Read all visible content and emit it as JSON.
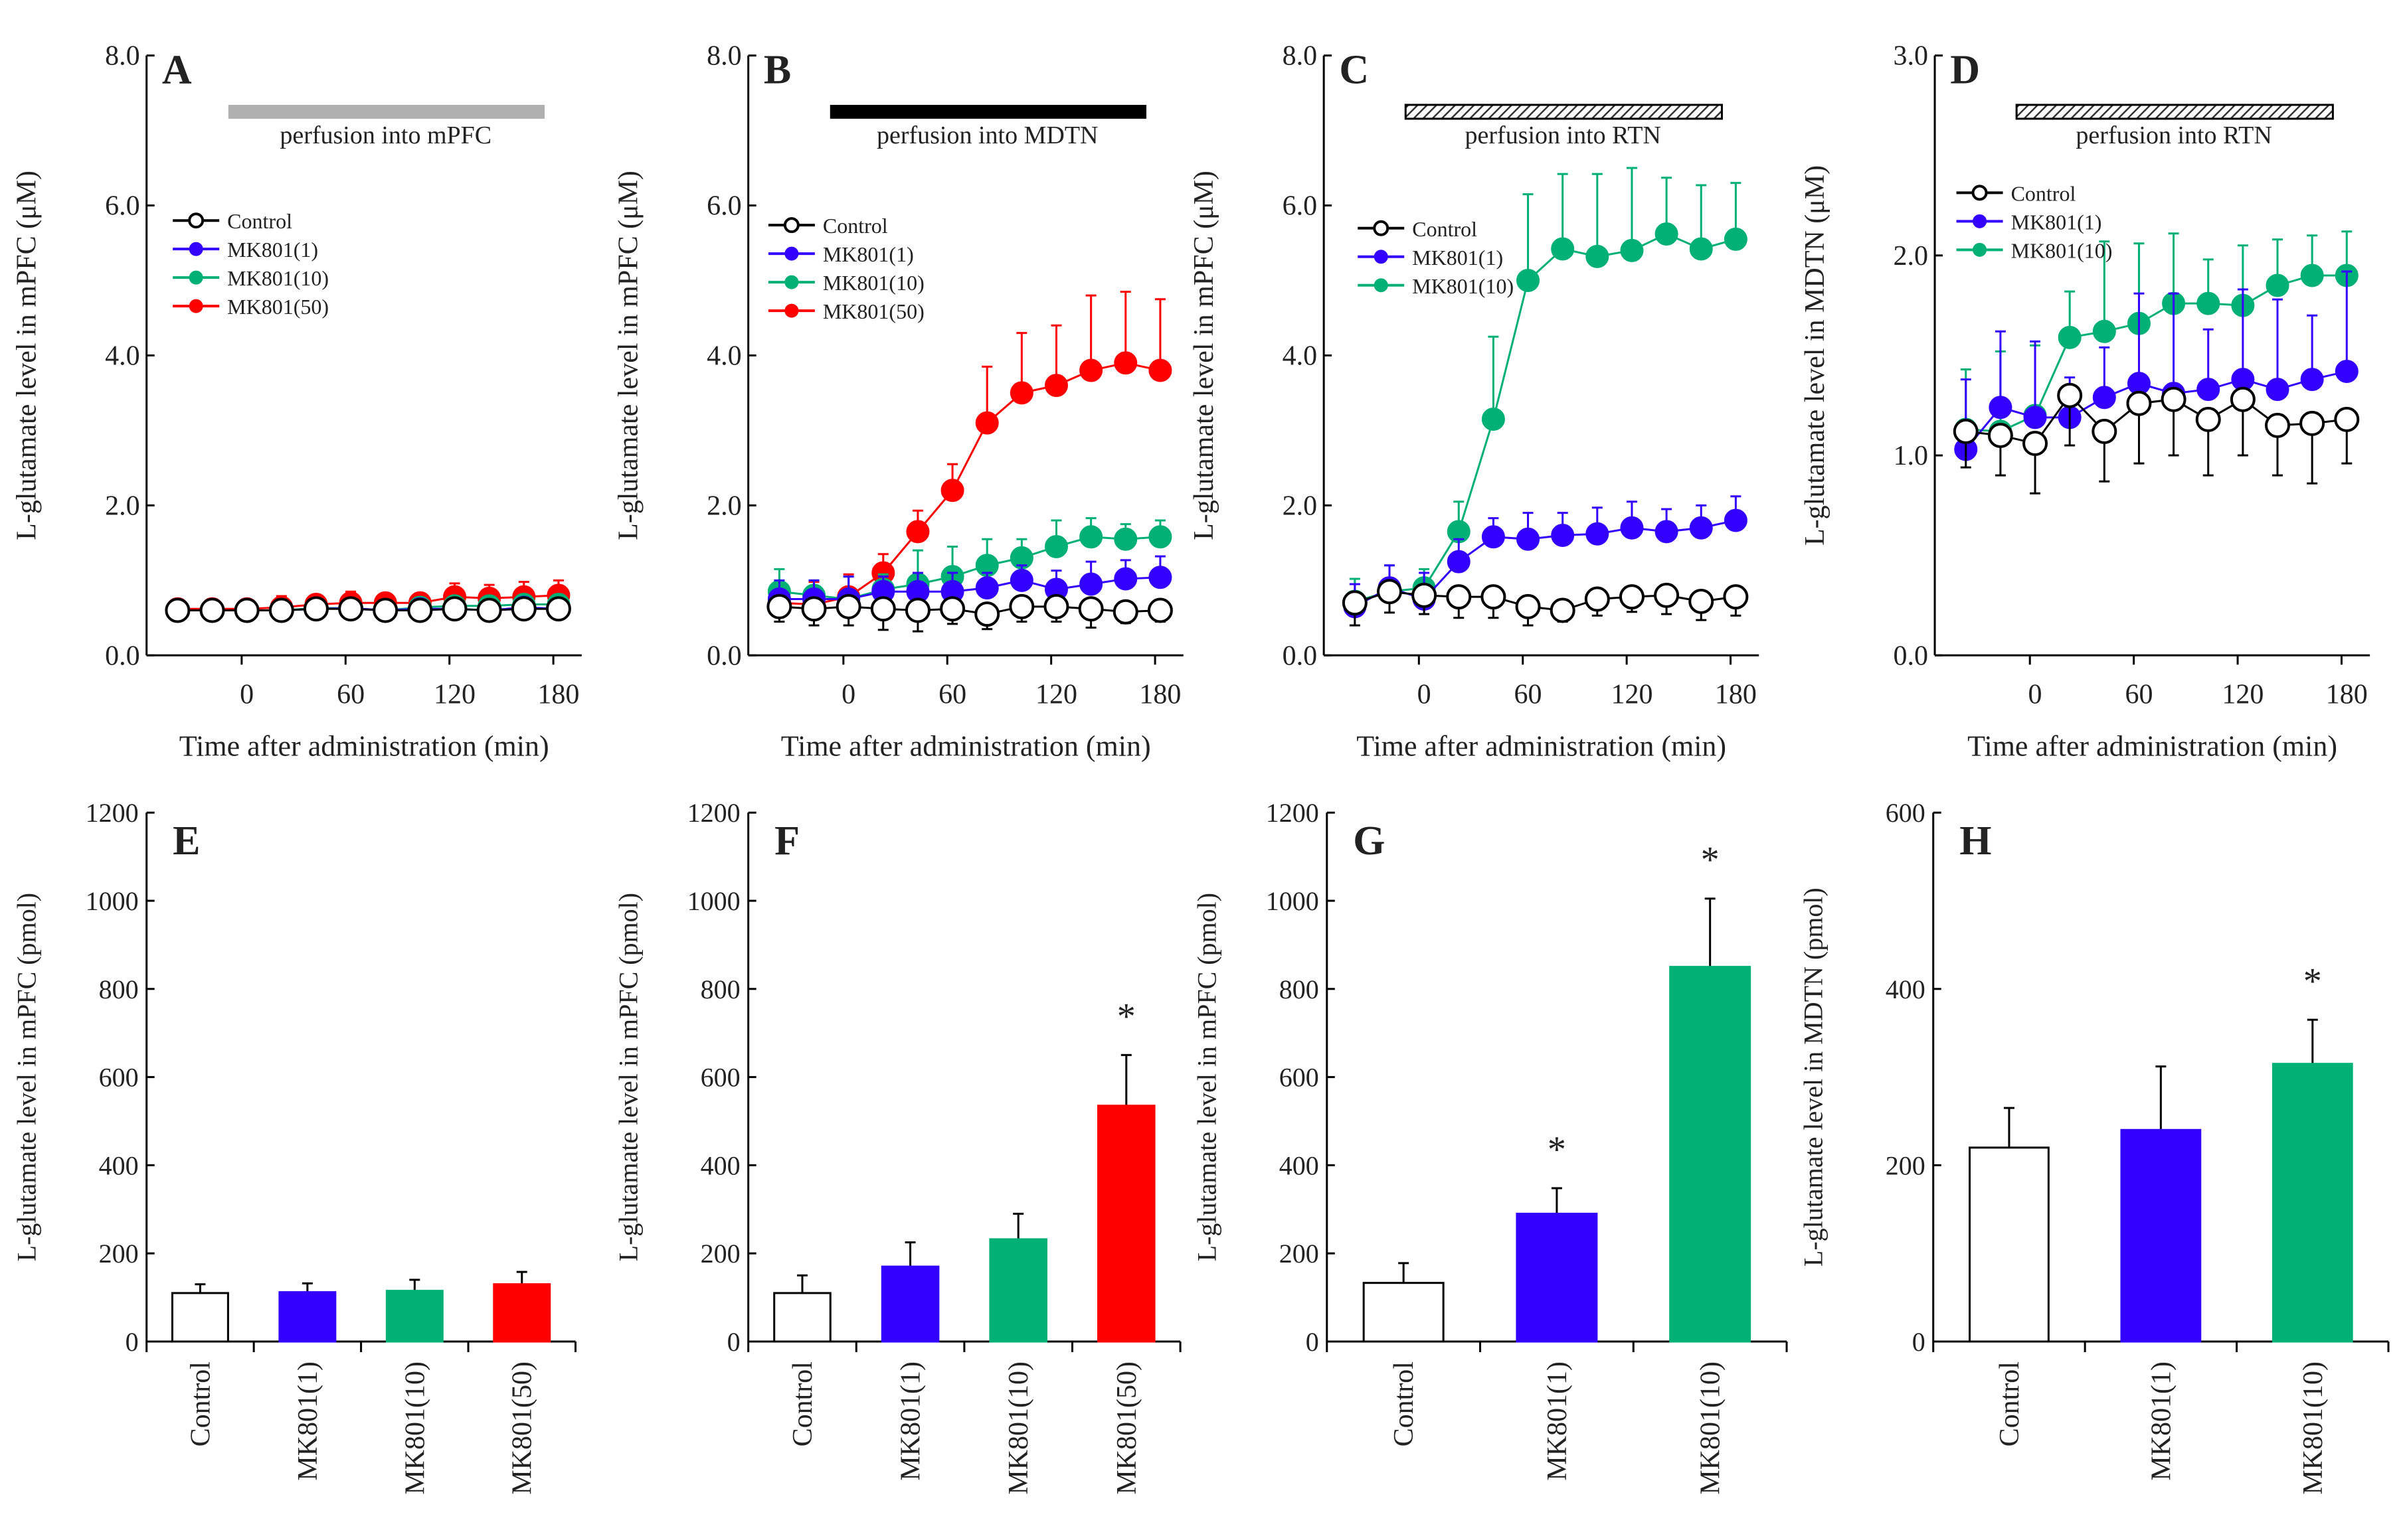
{
  "colors": {
    "control": "#ffffff",
    "mk1": "#3300ff",
    "mk10": "#00b074",
    "mk50": "#ff0000",
    "bar_mpfc": "#b0b0b0",
    "bar_mdtn": "#000000"
  },
  "chart_data": [
    {
      "panel": "A",
      "type": "line",
      "ylabel": "L-glutamate level in mPFC (μM)",
      "xlabel": "Time after administration (min)",
      "ylim": [
        0,
        8
      ],
      "yticks": [
        "0.0",
        "2.0",
        "4.0",
        "6.0",
        "8.0"
      ],
      "xticks": [
        "0",
        "60",
        "120",
        "180"
      ],
      "perfusion": {
        "label": "perfusion into mPFC",
        "style": "gray"
      },
      "x": [
        -40,
        -20,
        0,
        20,
        40,
        60,
        80,
        100,
        120,
        140,
        160,
        180
      ],
      "series": [
        {
          "name": "Control",
          "color": "#000000",
          "filled": false,
          "error_direction": "down",
          "values": [
            0.6,
            0.6,
            0.6,
            0.6,
            0.62,
            0.62,
            0.6,
            0.6,
            0.62,
            0.6,
            0.62,
            0.62
          ],
          "err": [
            0.08,
            0.08,
            0.08,
            0.08,
            0.08,
            0.08,
            0.08,
            0.08,
            0.08,
            0.08,
            0.08,
            0.08
          ]
        },
        {
          "name": "MK801(1)",
          "color": "#3300ff",
          "filled": true,
          "error_direction": "up",
          "values": [
            0.6,
            0.6,
            0.6,
            0.6,
            0.62,
            0.63,
            0.6,
            0.62,
            0.62,
            0.6,
            0.64,
            0.62
          ],
          "err": [
            0.08,
            0.08,
            0.08,
            0.08,
            0.08,
            0.08,
            0.08,
            0.08,
            0.1,
            0.1,
            0.1,
            0.1
          ]
        },
        {
          "name": "MK801(10)",
          "color": "#00b074",
          "filled": true,
          "error_direction": "up",
          "values": [
            0.6,
            0.6,
            0.6,
            0.6,
            0.63,
            0.63,
            0.6,
            0.64,
            0.66,
            0.66,
            0.68,
            0.68
          ],
          "err": [
            0.08,
            0.08,
            0.08,
            0.1,
            0.1,
            0.1,
            0.1,
            0.1,
            0.12,
            0.12,
            0.12,
            0.12
          ]
        },
        {
          "name": "MK801(50)",
          "color": "#ff0000",
          "filled": true,
          "error_direction": "up",
          "values": [
            0.62,
            0.62,
            0.62,
            0.64,
            0.68,
            0.7,
            0.7,
            0.7,
            0.78,
            0.76,
            0.78,
            0.8
          ],
          "err": [
            0.1,
            0.1,
            0.1,
            0.15,
            0.12,
            0.15,
            0.12,
            0.12,
            0.18,
            0.18,
            0.2,
            0.2
          ]
        }
      ]
    },
    {
      "panel": "B",
      "type": "line",
      "ylabel": "L-glutamate level in mPFC (μM)",
      "xlabel": "Time after administration (min)",
      "ylim": [
        0,
        8
      ],
      "yticks": [
        "0.0",
        "2.0",
        "4.0",
        "6.0",
        "8.0"
      ],
      "xticks": [
        "0",
        "60",
        "120",
        "180"
      ],
      "perfusion": {
        "label": "perfusion into MDTN",
        "style": "black"
      },
      "x": [
        -40,
        -20,
        0,
        20,
        40,
        60,
        80,
        100,
        120,
        140,
        160,
        180
      ],
      "series": [
        {
          "name": "Control",
          "color": "#000000",
          "filled": false,
          "error_direction": "down",
          "values": [
            0.65,
            0.62,
            0.65,
            0.62,
            0.6,
            0.62,
            0.55,
            0.65,
            0.65,
            0.62,
            0.58,
            0.6
          ],
          "err": [
            0.2,
            0.22,
            0.25,
            0.28,
            0.28,
            0.2,
            0.2,
            0.2,
            0.2,
            0.25,
            0.15,
            0.15
          ]
        },
        {
          "name": "MK801(1)",
          "color": "#3300ff",
          "filled": true,
          "error_direction": "up",
          "values": [
            0.75,
            0.75,
            0.75,
            0.85,
            0.85,
            0.85,
            0.9,
            1.0,
            0.88,
            0.95,
            1.02,
            1.04
          ],
          "err": [
            0.25,
            0.25,
            0.3,
            0.2,
            0.25,
            0.25,
            0.2,
            0.2,
            0.25,
            0.3,
            0.25,
            0.28
          ]
        },
        {
          "name": "MK801(10)",
          "color": "#00b074",
          "filled": true,
          "error_direction": "up",
          "values": [
            0.85,
            0.8,
            0.75,
            0.88,
            0.95,
            1.05,
            1.2,
            1.3,
            1.45,
            1.58,
            1.55,
            1.58
          ],
          "err": [
            0.3,
            0.2,
            0.3,
            0.2,
            0.45,
            0.4,
            0.35,
            0.25,
            0.35,
            0.25,
            0.2,
            0.22
          ]
        },
        {
          "name": "MK801(50)",
          "color": "#ff0000",
          "filled": true,
          "error_direction": "up",
          "values": [
            0.7,
            0.68,
            0.78,
            1.1,
            1.65,
            2.2,
            3.1,
            3.5,
            3.6,
            3.8,
            3.9,
            3.8
          ],
          "err": [
            0.25,
            0.3,
            0.3,
            0.25,
            0.28,
            0.35,
            0.75,
            0.8,
            0.8,
            1.0,
            0.95,
            0.95
          ]
        }
      ]
    },
    {
      "panel": "C",
      "type": "line",
      "ylabel": "L-glutamate level in mPFC (μM)",
      "xlabel": "Time after administration (min)",
      "ylim": [
        0,
        8
      ],
      "yticks": [
        "0.0",
        "2.0",
        "4.0",
        "6.0",
        "8.0"
      ],
      "xticks": [
        "0",
        "60",
        "120",
        "180"
      ],
      "perfusion": {
        "label": "perfusion into RTN",
        "style": "hatched"
      },
      "x": [
        -40,
        -20,
        0,
        20,
        40,
        60,
        80,
        100,
        120,
        140,
        160,
        180
      ],
      "series": [
        {
          "name": "Control",
          "color": "#000000",
          "filled": false,
          "error_direction": "down",
          "values": [
            0.7,
            0.85,
            0.8,
            0.78,
            0.78,
            0.65,
            0.6,
            0.75,
            0.78,
            0.8,
            0.72,
            0.78
          ],
          "err": [
            0.3,
            0.28,
            0.25,
            0.28,
            0.28,
            0.25,
            0.15,
            0.22,
            0.2,
            0.25,
            0.25,
            0.25
          ]
        },
        {
          "name": "MK801(1)",
          "color": "#3300ff",
          "filled": true,
          "error_direction": "up",
          "values": [
            0.65,
            0.9,
            0.75,
            1.25,
            1.58,
            1.55,
            1.6,
            1.62,
            1.7,
            1.65,
            1.7,
            1.8
          ],
          "err": [
            0.3,
            0.3,
            0.35,
            0.3,
            0.25,
            0.35,
            0.3,
            0.35,
            0.35,
            0.3,
            0.3,
            0.32
          ]
        },
        {
          "name": "MK801(10)",
          "color": "#00b074",
          "filled": true,
          "error_direction": "up",
          "values": [
            0.72,
            0.85,
            0.9,
            1.65,
            3.15,
            5.0,
            5.42,
            5.32,
            5.4,
            5.62,
            5.42,
            5.55
          ],
          "err": [
            0.3,
            0.35,
            0.25,
            0.4,
            1.1,
            1.15,
            1.0,
            1.1,
            1.1,
            0.75,
            0.85,
            0.75
          ]
        }
      ]
    },
    {
      "panel": "D",
      "type": "line",
      "ylabel": "L-glutamate level in MDTN (μM)",
      "xlabel": "Time after administration (min)",
      "ylim": [
        0,
        3
      ],
      "yticks": [
        "0.0",
        "1.0",
        "2.0",
        "3.0"
      ],
      "xticks": [
        "0",
        "60",
        "120",
        "180"
      ],
      "perfusion": {
        "label": "perfusion into RTN",
        "style": "hatched"
      },
      "x": [
        -40,
        -20,
        0,
        20,
        40,
        60,
        80,
        100,
        120,
        140,
        160,
        180
      ],
      "series": [
        {
          "name": "Control",
          "color": "#000000",
          "filled": false,
          "error_direction": "down",
          "values": [
            1.12,
            1.1,
            1.06,
            1.3,
            1.12,
            1.26,
            1.28,
            1.18,
            1.28,
            1.15,
            1.16,
            1.18
          ],
          "err": [
            0.18,
            0.2,
            0.25,
            0.25,
            0.25,
            0.3,
            0.28,
            0.28,
            0.28,
            0.25,
            0.3,
            0.22
          ]
        },
        {
          "name": "MK801(1)",
          "color": "#3300ff",
          "filled": true,
          "error_direction": "up",
          "values": [
            1.03,
            1.24,
            1.19,
            1.19,
            1.29,
            1.36,
            1.31,
            1.33,
            1.38,
            1.33,
            1.38,
            1.42
          ],
          "err": [
            0.35,
            0.38,
            0.38,
            0.2,
            0.25,
            0.45,
            0.5,
            0.3,
            0.45,
            0.45,
            0.32,
            0.5
          ]
        },
        {
          "name": "MK801(10)",
          "color": "#00b074",
          "filled": true,
          "error_direction": "up",
          "values": [
            1.13,
            1.12,
            1.2,
            1.59,
            1.62,
            1.66,
            1.76,
            1.76,
            1.75,
            1.85,
            1.9,
            1.9
          ],
          "err": [
            0.3,
            0.4,
            0.35,
            0.23,
            0.45,
            0.4,
            0.35,
            0.22,
            0.3,
            0.23,
            0.2,
            0.22
          ]
        }
      ]
    },
    {
      "panel": "E",
      "type": "bar",
      "ylabel": "L-glutamate level in mPFC (pmol)",
      "ylim": [
        0,
        1200
      ],
      "yticks": [
        "0",
        "200",
        "400",
        "600",
        "800",
        "1000",
        "1200"
      ],
      "categories": [
        "Control",
        "MK801(1)",
        "MK801(10)",
        "MK801(50)"
      ],
      "values": [
        110,
        112,
        115,
        130
      ],
      "err": [
        20,
        20,
        25,
        28
      ],
      "bar_colors": [
        "#ffffff",
        "#3300ff",
        "#00b074",
        "#ff0000"
      ],
      "significance": [
        "",
        "",
        "",
        ""
      ]
    },
    {
      "panel": "F",
      "type": "bar",
      "ylabel": "L-glutamate level in mPFC (pmol)",
      "ylim": [
        0,
        1200
      ],
      "yticks": [
        "0",
        "200",
        "400",
        "600",
        "800",
        "1000",
        "1200"
      ],
      "categories": [
        "Control",
        "MK801(1)",
        "MK801(10)",
        "MK801(50)"
      ],
      "values": [
        110,
        170,
        232,
        535
      ],
      "err": [
        40,
        55,
        58,
        115
      ],
      "bar_colors": [
        "#ffffff",
        "#3300ff",
        "#00b074",
        "#ff0000"
      ],
      "significance": [
        "",
        "",
        "",
        "*"
      ]
    },
    {
      "panel": "G",
      "type": "bar",
      "ylabel": "L-glutamate level in mPFC (pmol)",
      "ylim": [
        0,
        1200
      ],
      "yticks": [
        "0",
        "200",
        "400",
        "600",
        "800",
        "1000",
        "1200"
      ],
      "categories": [
        "Control",
        "MK801(1)",
        "MK801(10)"
      ],
      "values": [
        133,
        290,
        850
      ],
      "err": [
        45,
        58,
        155
      ],
      "bar_colors": [
        "#ffffff",
        "#3300ff",
        "#00b074"
      ],
      "significance": [
        "",
        "*",
        "*"
      ]
    },
    {
      "panel": "H",
      "type": "bar",
      "ylabel": "L-glutamate level in MDTN (pmol)",
      "ylim": [
        0,
        600
      ],
      "yticks": [
        "0",
        "200",
        "400",
        "600"
      ],
      "categories": [
        "Control",
        "MK801(1)",
        "MK801(10)"
      ],
      "values": [
        220,
        240,
        315
      ],
      "err": [
        45,
        72,
        50
      ],
      "bar_colors": [
        "#ffffff",
        "#3300ff",
        "#00b074"
      ],
      "significance": [
        "",
        "",
        "*"
      ]
    }
  ]
}
